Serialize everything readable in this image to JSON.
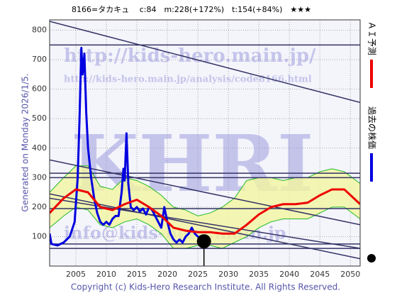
{
  "header": "8166=タカキュ　 c:84　m:228(+172%)　t:154(+84%)　★★★",
  "side_note": "Generated on Monday 2026/1/5.",
  "footer": "Copyright (c) Kids-Hero Research Institute. All Rights Reserved.",
  "watermarks": [
    "http://kids-hero.main.jp/",
    "http://kids-hero.main.jp/analysis/code8166.html",
    "KHRI",
    "info@kids-hero.main.jp"
  ],
  "chart_data": {
    "type": "line",
    "xlim": [
      2000.7,
      2051.6
    ],
    "xticks": [
      2005,
      2010,
      2015,
      2020,
      2025,
      2030,
      2035,
      2040,
      2045,
      2050
    ],
    "ylim": [
      0,
      835
    ],
    "yticks": [
      100,
      200,
      300,
      400,
      500,
      600,
      700,
      800
    ],
    "grid": true,
    "series": [
      {
        "name": "過去の株価",
        "color": "#0000e0",
        "x": [
          2000.7,
          2001,
          2002,
          2003,
          2004,
          2004.8,
          2005.3,
          2005.6,
          2005.9,
          2006.1,
          2006.4,
          2006.7,
          2007,
          2007.5,
          2008,
          2008.5,
          2009,
          2009.5,
          2010,
          2010.5,
          2011,
          2011.5,
          2012,
          2012.5,
          2012.8,
          2013,
          2013.3,
          2013.6,
          2014,
          2014.5,
          2015,
          2015.5,
          2016,
          2016.5,
          2017,
          2017.5,
          2018,
          2018.5,
          2019,
          2019.5,
          2020,
          2020.5,
          2021,
          2021.5,
          2022,
          2022.5,
          2023,
          2023.5,
          2024,
          2024.5,
          2025,
          2025.5,
          2026
        ],
        "values": [
          110,
          75,
          70,
          80,
          100,
          150,
          300,
          500,
          740,
          650,
          720,
          520,
          400,
          300,
          230,
          180,
          150,
          140,
          150,
          140,
          160,
          170,
          170,
          250,
          330,
          290,
          450,
          280,
          200,
          190,
          200,
          185,
          195,
          175,
          200,
          190,
          170,
          150,
          130,
          200,
          150,
          110,
          90,
          80,
          90,
          80,
          100,
          110,
          130,
          110,
          100,
          90,
          84
        ]
      },
      {
        "name": "ＡＩ予測",
        "color": "#ee0000",
        "x": [
          2000.7,
          2003,
          2005,
          2007,
          2009,
          2011,
          2013,
          2015,
          2017,
          2019,
          2021,
          2023,
          2025,
          2027,
          2029,
          2031,
          2033,
          2035,
          2037,
          2039,
          2041,
          2043,
          2045,
          2047,
          2049,
          2051.6
        ],
        "values": [
          180,
          230,
          260,
          250,
          200,
          190,
          210,
          225,
          200,
          170,
          130,
          120,
          115,
          115,
          110,
          110,
          140,
          175,
          200,
          210,
          210,
          215,
          240,
          260,
          260,
          210
        ]
      }
    ],
    "band": {
      "color": "#22bb22",
      "fill": "#f2f5a0",
      "x": [
        2000.7,
        2003,
        2005,
        2007,
        2009,
        2011,
        2013,
        2015,
        2017,
        2019,
        2021,
        2023,
        2025,
        2027,
        2029,
        2031,
        2033,
        2035,
        2037,
        2039,
        2041,
        2043,
        2045,
        2047,
        2049,
        2051.6
      ],
      "upper": [
        250,
        300,
        340,
        340,
        270,
        260,
        300,
        290,
        270,
        240,
        200,
        190,
        170,
        180,
        200,
        230,
        290,
        300,
        300,
        290,
        300,
        300,
        320,
        330,
        320,
        280
      ],
      "lower": [
        130,
        170,
        200,
        190,
        140,
        130,
        150,
        160,
        140,
        110,
        60,
        60,
        70,
        70,
        60,
        80,
        100,
        130,
        150,
        160,
        160,
        160,
        180,
        200,
        200,
        160
      ]
    },
    "hlines": [
      750,
      315,
      300,
      195,
      75,
      60
    ],
    "trend_lines": [
      {
        "x": [
          2000.7,
          2051.6
        ],
        "values": [
          830,
          555
        ]
      },
      {
        "x": [
          2000.7,
          2051.6
        ],
        "values": [
          360,
          140
        ]
      },
      {
        "x": [
          2000.7,
          2051.6
        ],
        "values": [
          245,
          25
        ]
      },
      {
        "x": [
          2000.7,
          2051.6
        ],
        "values": [
          230,
          60
        ]
      }
    ],
    "latest": {
      "x": 2026,
      "value": 84,
      "color": "#000000"
    }
  }
}
